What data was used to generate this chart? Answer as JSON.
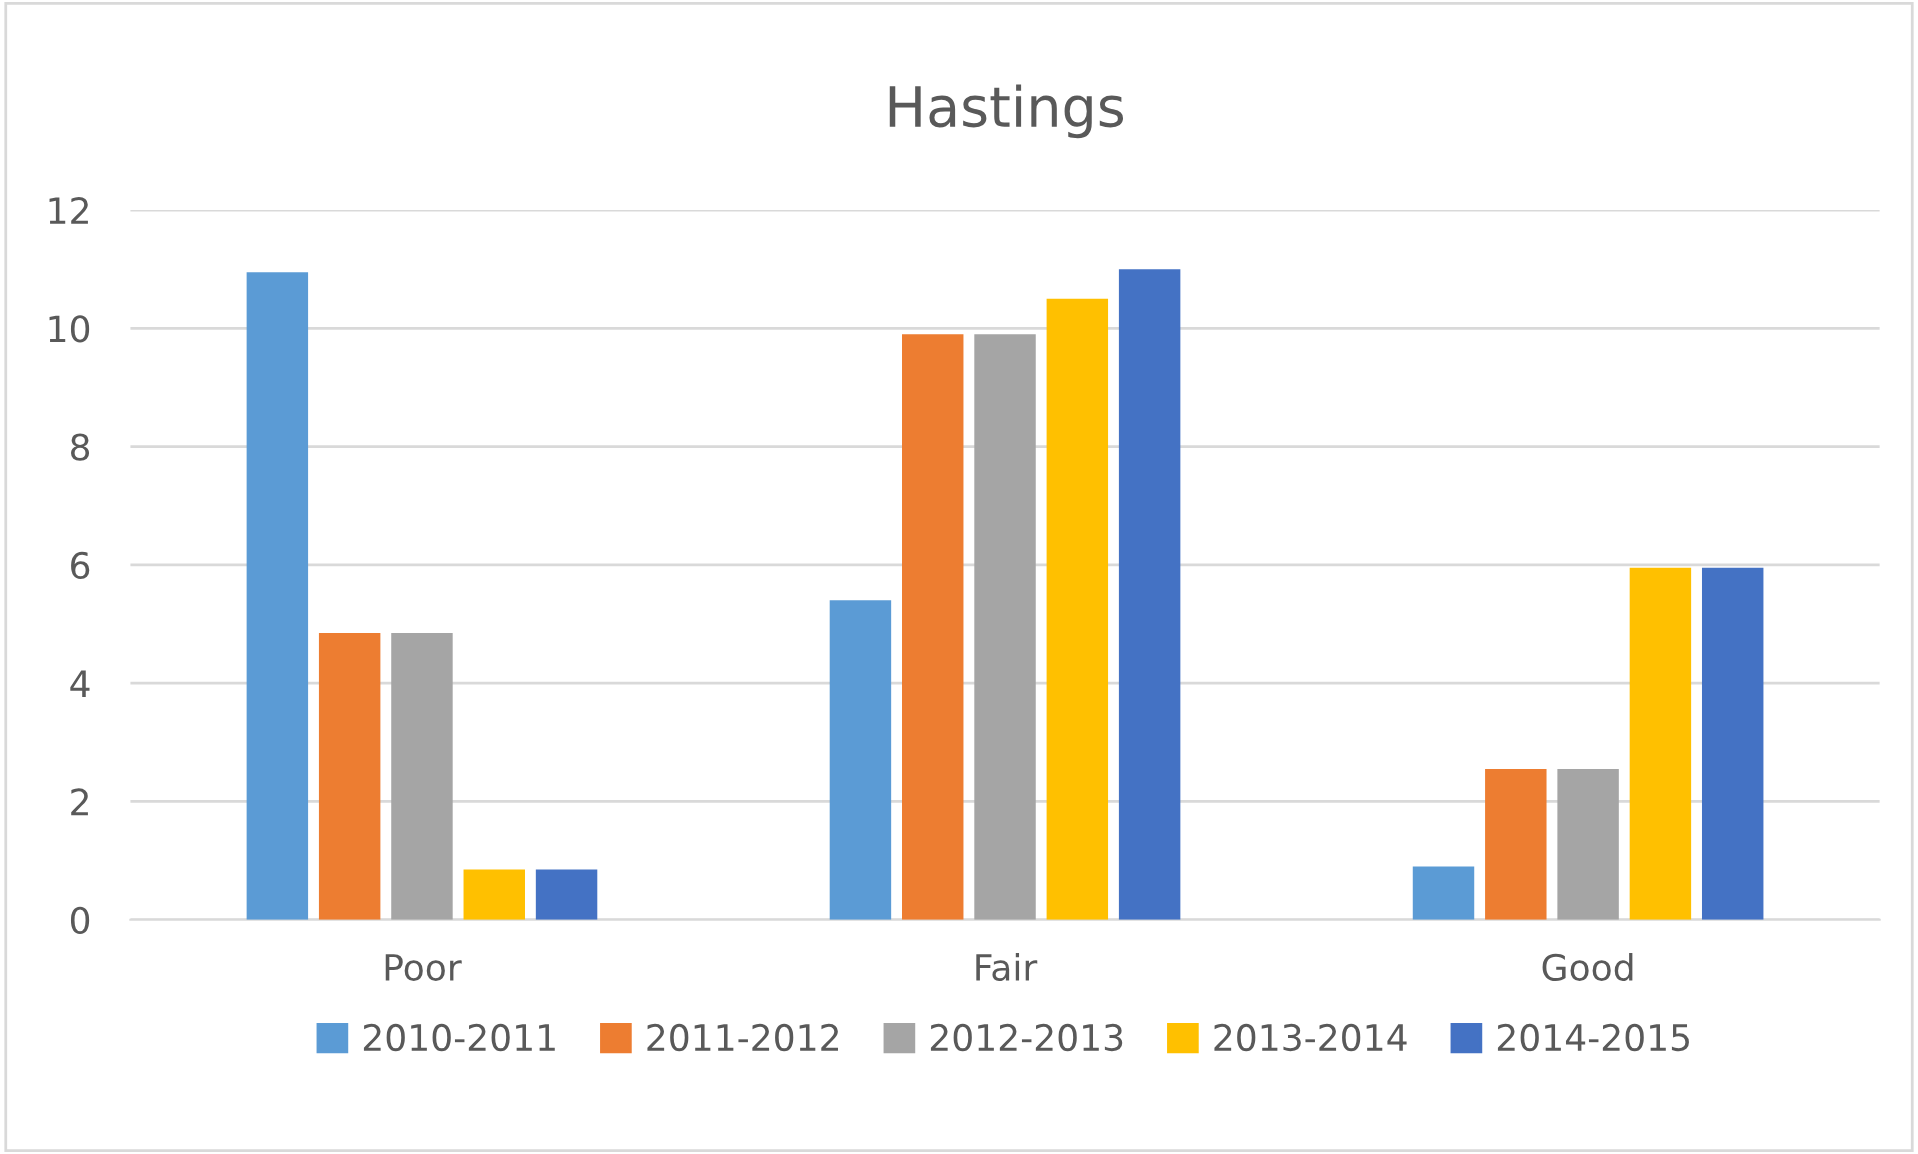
{
  "chart_data": {
    "type": "bar",
    "title": "Hastings",
    "categories": [
      "Poor",
      "Fair",
      "Good"
    ],
    "series": [
      {
        "name": "2010-2011",
        "color": "#5b9bd5",
        "values": [
          10.95,
          5.4,
          0.9
        ]
      },
      {
        "name": "2011-2012",
        "color": "#ed7d31",
        "values": [
          4.85,
          9.9,
          2.55
        ]
      },
      {
        "name": "2012-2013",
        "color": "#a5a5a5",
        "values": [
          4.85,
          9.9,
          2.55
        ]
      },
      {
        "name": "2013-2014",
        "color": "#ffc000",
        "values": [
          0.85,
          10.5,
          5.95
        ]
      },
      {
        "name": "2014-2015",
        "color": "#4472c4",
        "values": [
          0.85,
          11.0,
          5.95
        ]
      }
    ],
    "ylim": [
      0,
      12
    ],
    "yticks": [
      0,
      2,
      4,
      6,
      8,
      10,
      12
    ],
    "grid": "y",
    "legend": "bottom"
  }
}
